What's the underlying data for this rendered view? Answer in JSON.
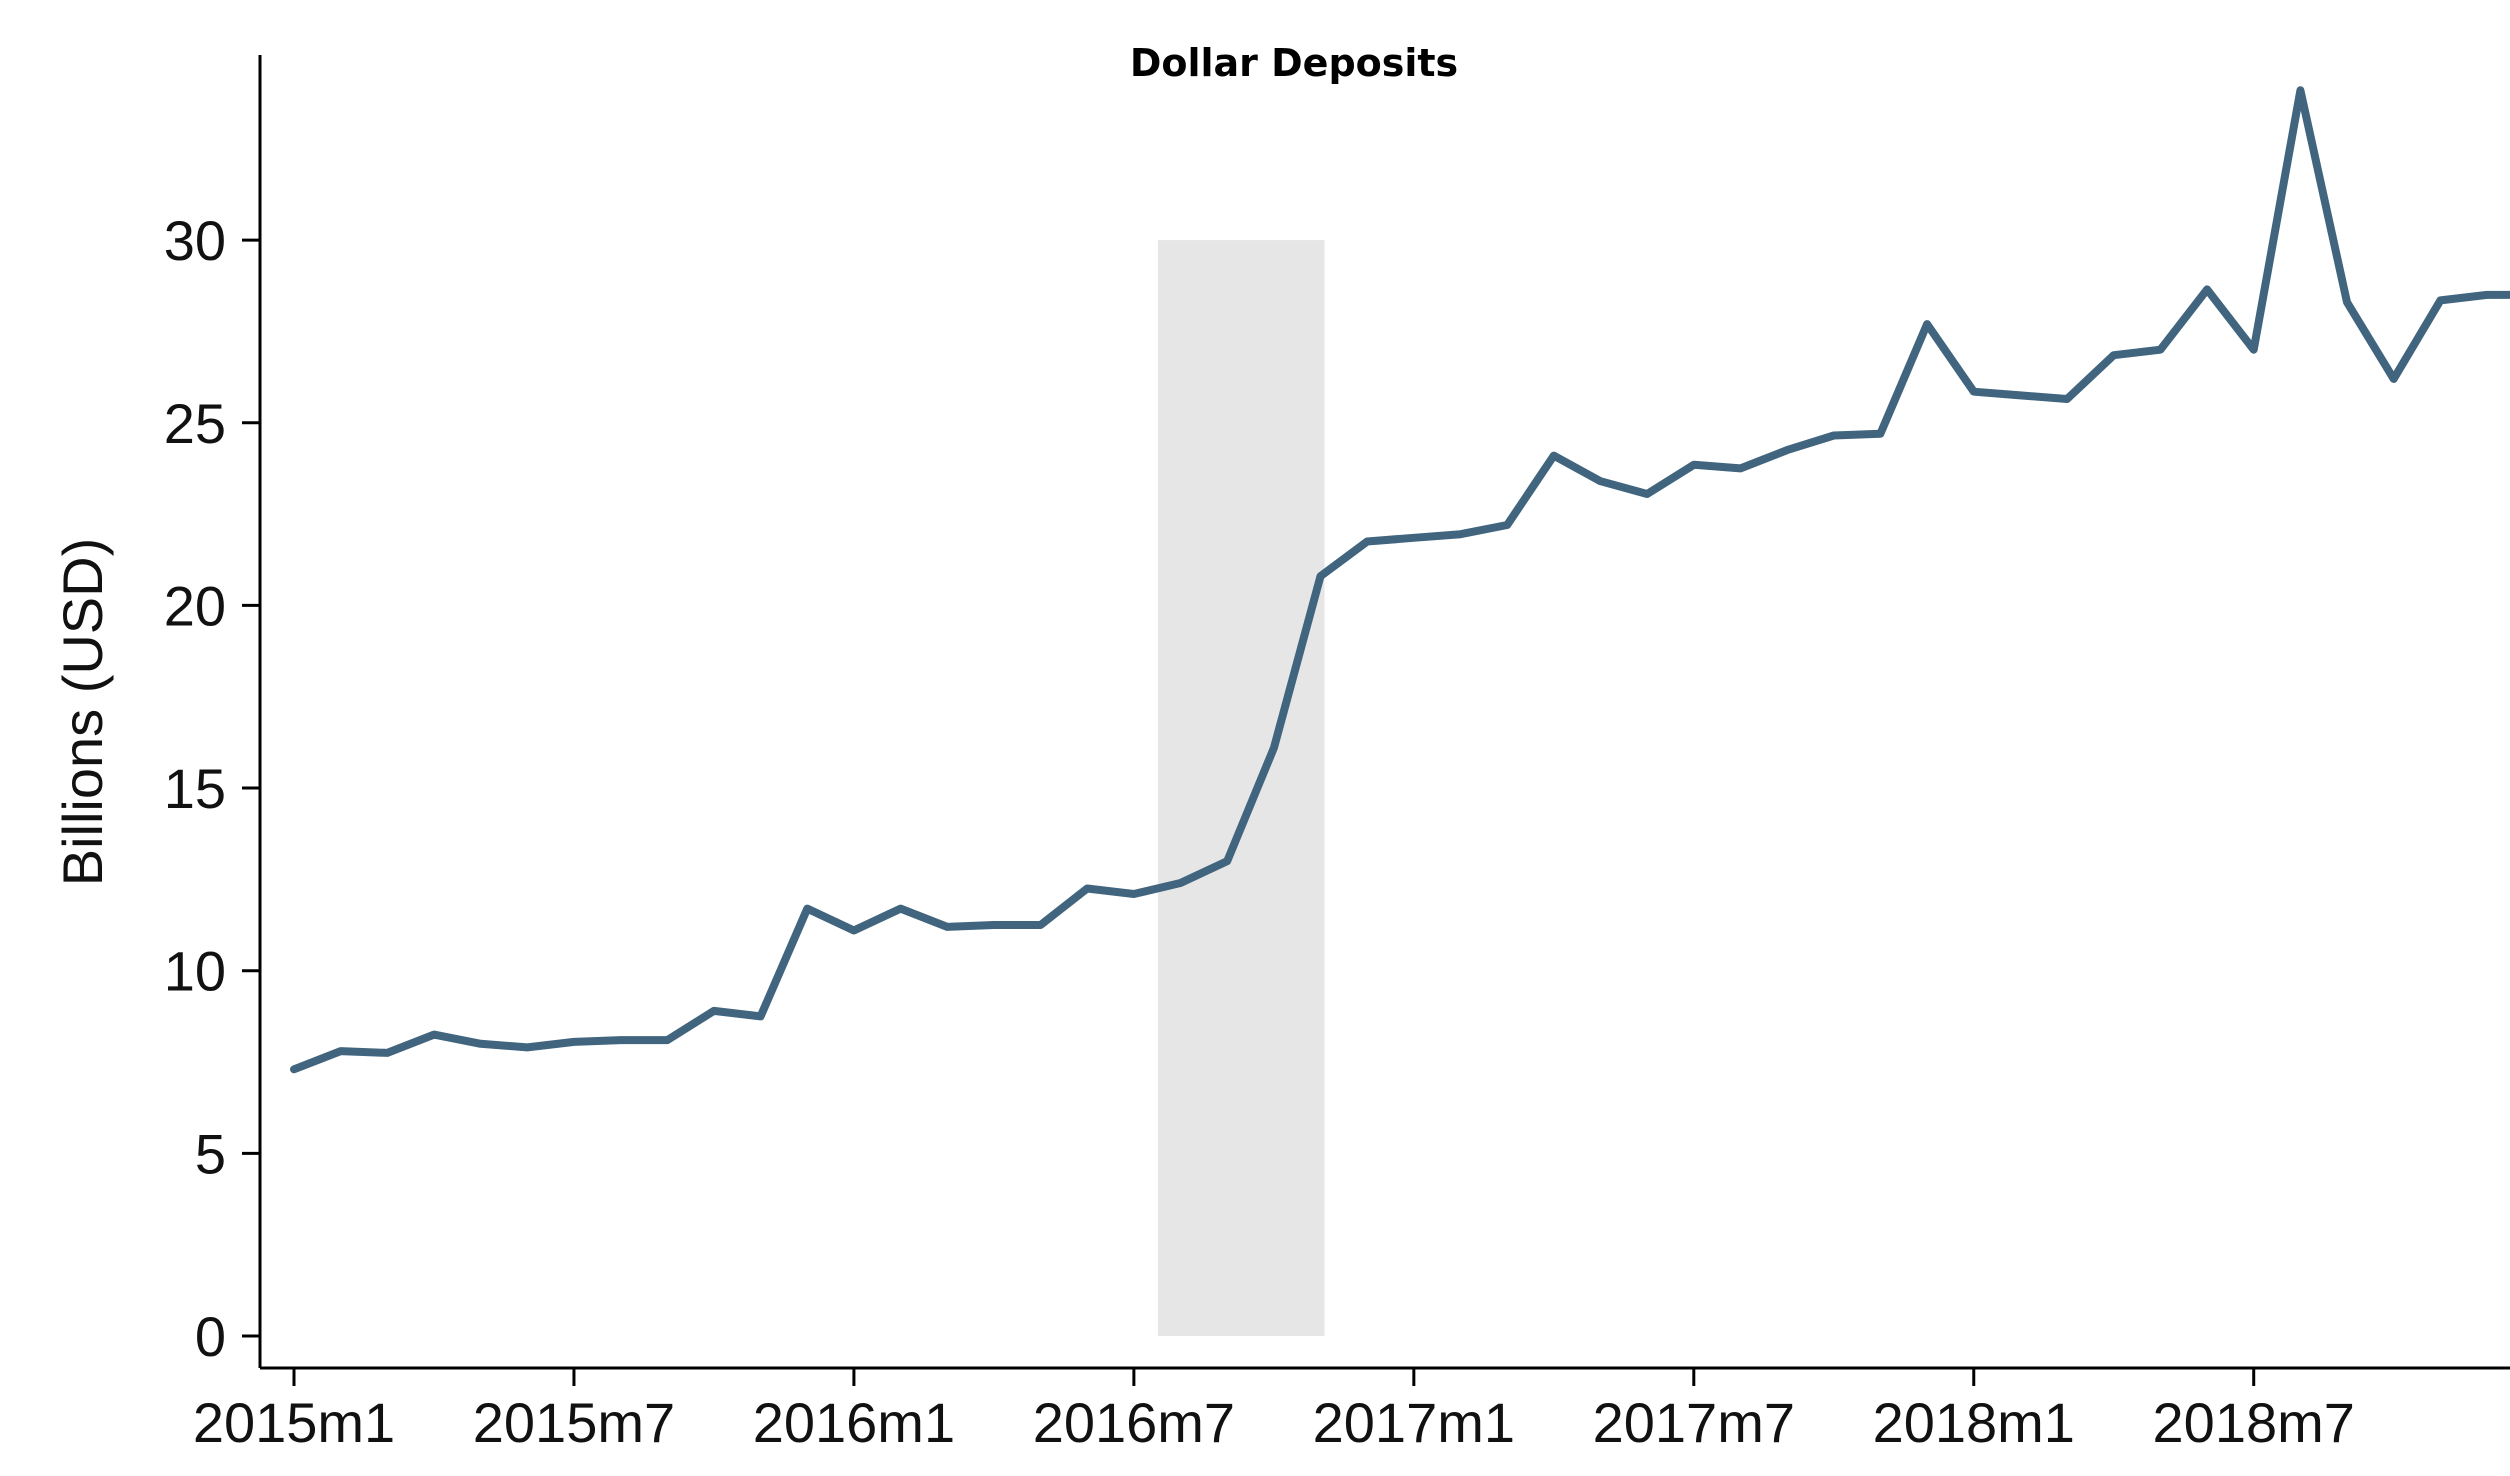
{
  "chart_data": {
    "type": "line",
    "title": "Dollar Deposits",
    "xlabel": "",
    "ylabel": "Billions (USD)",
    "ylim": [
      0,
      35
    ],
    "y_ticks": [
      0,
      5,
      10,
      15,
      20,
      25,
      30
    ],
    "x_ticks": [
      "2015m1",
      "2015m7",
      "2016m1",
      "2016m7",
      "2017m1",
      "2017m7",
      "2018m1",
      "2018m7"
    ],
    "grid": false,
    "shaded_region": {
      "x_start": "2016m7",
      "x_end": "2016m11",
      "y_start": 0,
      "y_end": 30,
      "color": "#e6e6e6"
    },
    "series_color": "#41657e",
    "x": [
      "2015m1",
      "2015m2",
      "2015m3",
      "2015m4",
      "2015m5",
      "2015m6",
      "2015m7",
      "2015m8",
      "2015m9",
      "2015m10",
      "2015m11",
      "2015m12",
      "2016m1",
      "2016m2",
      "2016m3",
      "2016m4",
      "2016m5",
      "2016m6",
      "2016m7",
      "2016m8",
      "2016m9",
      "2016m10",
      "2016m11",
      "2016m12",
      "2017m1",
      "2017m2",
      "2017m3",
      "2017m4",
      "2017m5",
      "2017m6",
      "2017m7",
      "2017m8",
      "2017m9",
      "2017m10",
      "2017m11",
      "2017m12",
      "2018m1",
      "2018m2",
      "2018m3",
      "2018m4",
      "2018m5",
      "2018m6",
      "2018m7",
      "2018m8",
      "2018m9",
      "2018m10",
      "2018m11",
      "2018m12",
      "2019m1"
    ],
    "series": [
      {
        "values": [
          7.3,
          7.8,
          7.75,
          8.25,
          8.0,
          7.9,
          8.05,
          8.1,
          8.1,
          8.9,
          8.75,
          11.7,
          11.1,
          11.7,
          11.2,
          11.25,
          11.25,
          12.25,
          12.1,
          12.4,
          13.0,
          16.1,
          20.8,
          21.75,
          21.85,
          21.95,
          22.2,
          24.1,
          23.4,
          23.05,
          23.85,
          23.75,
          24.25,
          24.65,
          24.7,
          27.7,
          25.85,
          25.75,
          25.65,
          26.85,
          27.0,
          28.65,
          27.0,
          34.1,
          28.3,
          26.2,
          28.35,
          28.5,
          28.5
        ]
      }
    ]
  }
}
